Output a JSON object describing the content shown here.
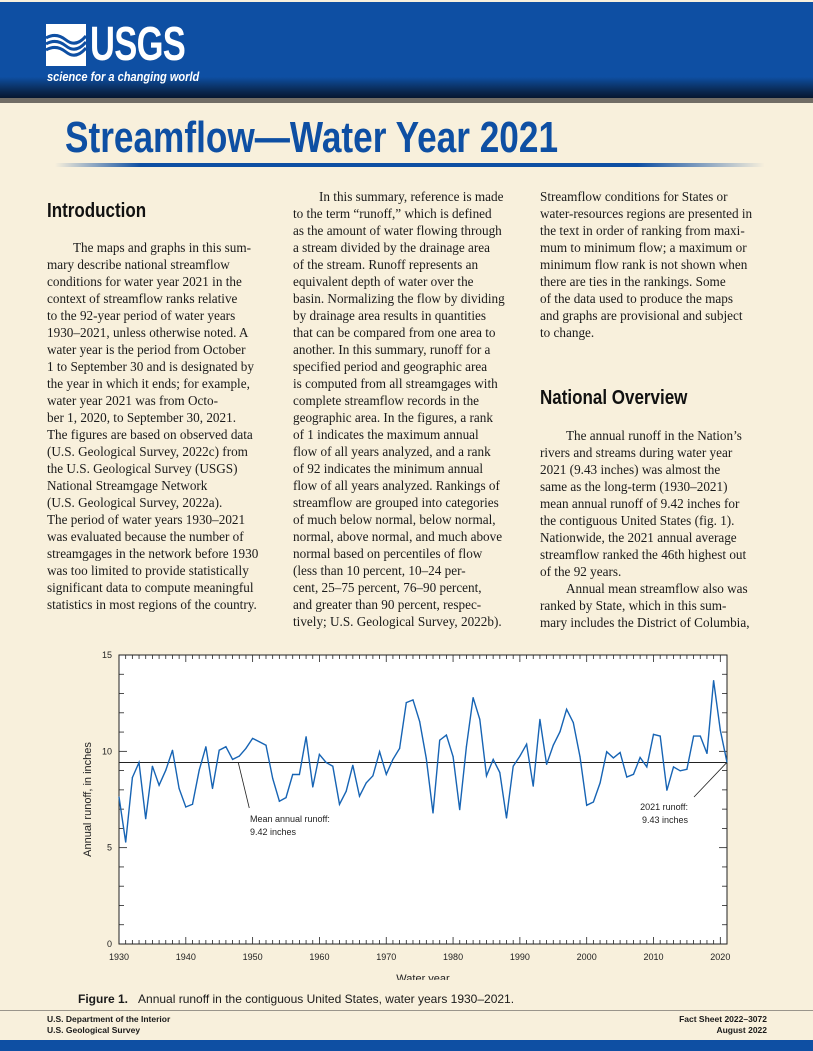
{
  "header": {
    "logo": "USGS",
    "tagline": "science for a changing world",
    "brand_color": "#0e4fa3"
  },
  "title": "Streamflow—Water Year 2021",
  "columns": {
    "intro_heading": "Introduction",
    "overview_heading": "National Overview",
    "col1": [
      [
        "The maps and graphs in this sum-",
        "mary describe national streamflow",
        "conditions for water year 2021 in the",
        "context of streamflow ranks relative",
        "to the 92-year period of water years",
        "1930–2021, unless otherwise noted. A",
        "water year is the period from October",
        "1 to September 30 and is designated by",
        "the year in which it ends; for example,",
        "water year 2021 was from Octo-",
        "ber 1, 2020, to September 30, 2021.",
        "The figures are based on observed data",
        "(U.S. Geological Survey, 2022c) from",
        "the U.S. Geological Survey (USGS)",
        "National Streamgage Network",
        "(U.S. Geological Survey, 2022a).",
        "The period of water years 1930–2021",
        "was evaluated because the number of",
        "streamgages in the network before 1930",
        "was too limited to provide statistically",
        "significant data to compute meaningful",
        "statistics in most regions of the country."
      ]
    ],
    "col2": [
      [
        "In this summary, reference is made",
        "to the term “runoff,” which is defined",
        "as the amount of water flowing through",
        "a stream divided by the drainage area",
        "of the stream. Runoff represents an",
        "equivalent depth of water over the",
        "basin. Normalizing the flow by dividing",
        "by drainage area results in quantities",
        "that can be compared from one area to",
        "another. In this summary, runoff for a",
        "specified period and geographic area",
        "is computed from all streamgages with",
        "complete streamflow records in the",
        "geographic area. In the figures, a rank",
        "of 1 indicates the maximum annual",
        "flow of all years analyzed, and a rank",
        "of 92 indicates the minimum annual",
        "flow of all years analyzed. Rankings of",
        "streamflow are grouped into categories",
        "of much below normal, below normal,",
        "normal, above normal, and much above",
        "normal based on percentiles of flow",
        "(less than 10 percent, 10–24 per-",
        "cent, 25–75 percent, 76–90 percent,",
        "and greater than 90 percent, respec-",
        "tively; U.S. Geological Survey, 2022b)."
      ]
    ],
    "col3_top": [
      [
        "Streamflow conditions for States or",
        "water-resources regions are presented in",
        "the text in order of ranking from maxi-",
        "mum to minimum flow; a maximum or",
        "minimum flow rank is not shown when",
        "there are ties in the rankings. Some",
        "of the data used to produce the maps",
        "and graphs are provisional and subject",
        "to change."
      ]
    ],
    "col3_bottom": [
      [
        "The annual runoff in the Nation’s",
        "rivers and streams during water year",
        "2021 (9.43 inches) was almost the",
        "same as the long-term (1930–2021)",
        "mean annual runoff of 9.42 inches for",
        "the contiguous United States (fig. 1).",
        "Nationwide, the 2021 annual average",
        "streamflow ranked the 46th highest out",
        "of the 92 years."
      ],
      [
        "Annual mean streamflow also was",
        "ranked by State, which in this sum-",
        "mary includes the District of Columbia,"
      ]
    ]
  },
  "chart_data": {
    "type": "line",
    "title": "",
    "xlabel": "Water year",
    "ylabel": "Annual runoff, in inches",
    "xlim": [
      1930,
      2021
    ],
    "ylim": [
      0,
      15
    ],
    "xticks": [
      1930,
      1940,
      1950,
      1960,
      1970,
      1980,
      1990,
      2000,
      2010,
      2020
    ],
    "yticks": [
      0,
      5,
      10,
      15
    ],
    "grid": false,
    "line_color": "#1764b4",
    "x": [
      1930,
      1931,
      1932,
      1933,
      1934,
      1935,
      1936,
      1937,
      1938,
      1939,
      1940,
      1941,
      1942,
      1943,
      1944,
      1945,
      1946,
      1947,
      1948,
      1949,
      1950,
      1951,
      1952,
      1953,
      1954,
      1955,
      1956,
      1957,
      1958,
      1959,
      1960,
      1961,
      1962,
      1963,
      1964,
      1965,
      1966,
      1967,
      1968,
      1969,
      1970,
      1971,
      1972,
      1973,
      1974,
      1975,
      1976,
      1977,
      1978,
      1979,
      1980,
      1981,
      1982,
      1983,
      1984,
      1985,
      1986,
      1987,
      1988,
      1989,
      1990,
      1991,
      1992,
      1993,
      1994,
      1995,
      1996,
      1997,
      1998,
      1999,
      2000,
      2001,
      2002,
      2003,
      2004,
      2005,
      2006,
      2007,
      2008,
      2009,
      2010,
      2011,
      2012,
      2013,
      2014,
      2015,
      2016,
      2017,
      2018,
      2019,
      2020,
      2021
    ],
    "values": [
      7.63,
      5.29,
      8.64,
      9.42,
      6.5,
      9.23,
      8.24,
      9.02,
      10.06,
      8.07,
      7.11,
      7.25,
      9.02,
      10.24,
      8.07,
      10.06,
      10.24,
      9.58,
      9.75,
      10.15,
      10.67,
      10.5,
      10.32,
      8.59,
      7.41,
      7.6,
      8.8,
      8.8,
      10.76,
      8.15,
      9.84,
      9.42,
      9.23,
      7.25,
      7.93,
      9.28,
      7.67,
      8.36,
      8.73,
      9.98,
      8.81,
      9.58,
      10.15,
      12.53,
      12.67,
      11.54,
      9.63,
      6.8,
      10.58,
      10.84,
      9.72,
      6.97,
      10.24,
      12.79,
      11.66,
      8.73,
      9.58,
      8.9,
      6.54,
      9.23,
      9.75,
      10.37,
      8.19,
      11.66,
      9.32,
      10.32,
      11.02,
      12.18,
      11.49,
      9.72,
      7.2,
      7.37,
      8.36,
      9.98,
      9.66,
      9.94,
      8.67,
      8.81,
      9.68,
      9.19,
      10.88,
      10.79,
      7.98,
      9.19,
      8.99,
      9.07,
      10.79,
      10.79,
      9.89,
      13.67,
      11.1,
      9.43
    ],
    "mean_line": 9.42,
    "annotations": [
      {
        "text": [
          "Mean annual runoff:",
          "9.42 inches"
        ],
        "year": 1948
      },
      {
        "text": [
          "2021 runoff:",
          "9.43 inches"
        ],
        "year": 2021
      }
    ]
  },
  "caption": {
    "label": "Figure 1.",
    "text": "Annual runoff in the contiguous United States, water years 1930–2021."
  },
  "footer": {
    "left1": "U.S. Department of the Interior",
    "left2": "U.S. Geological Survey",
    "right1": "Fact Sheet 2022–3072",
    "right2": "August 2022"
  }
}
